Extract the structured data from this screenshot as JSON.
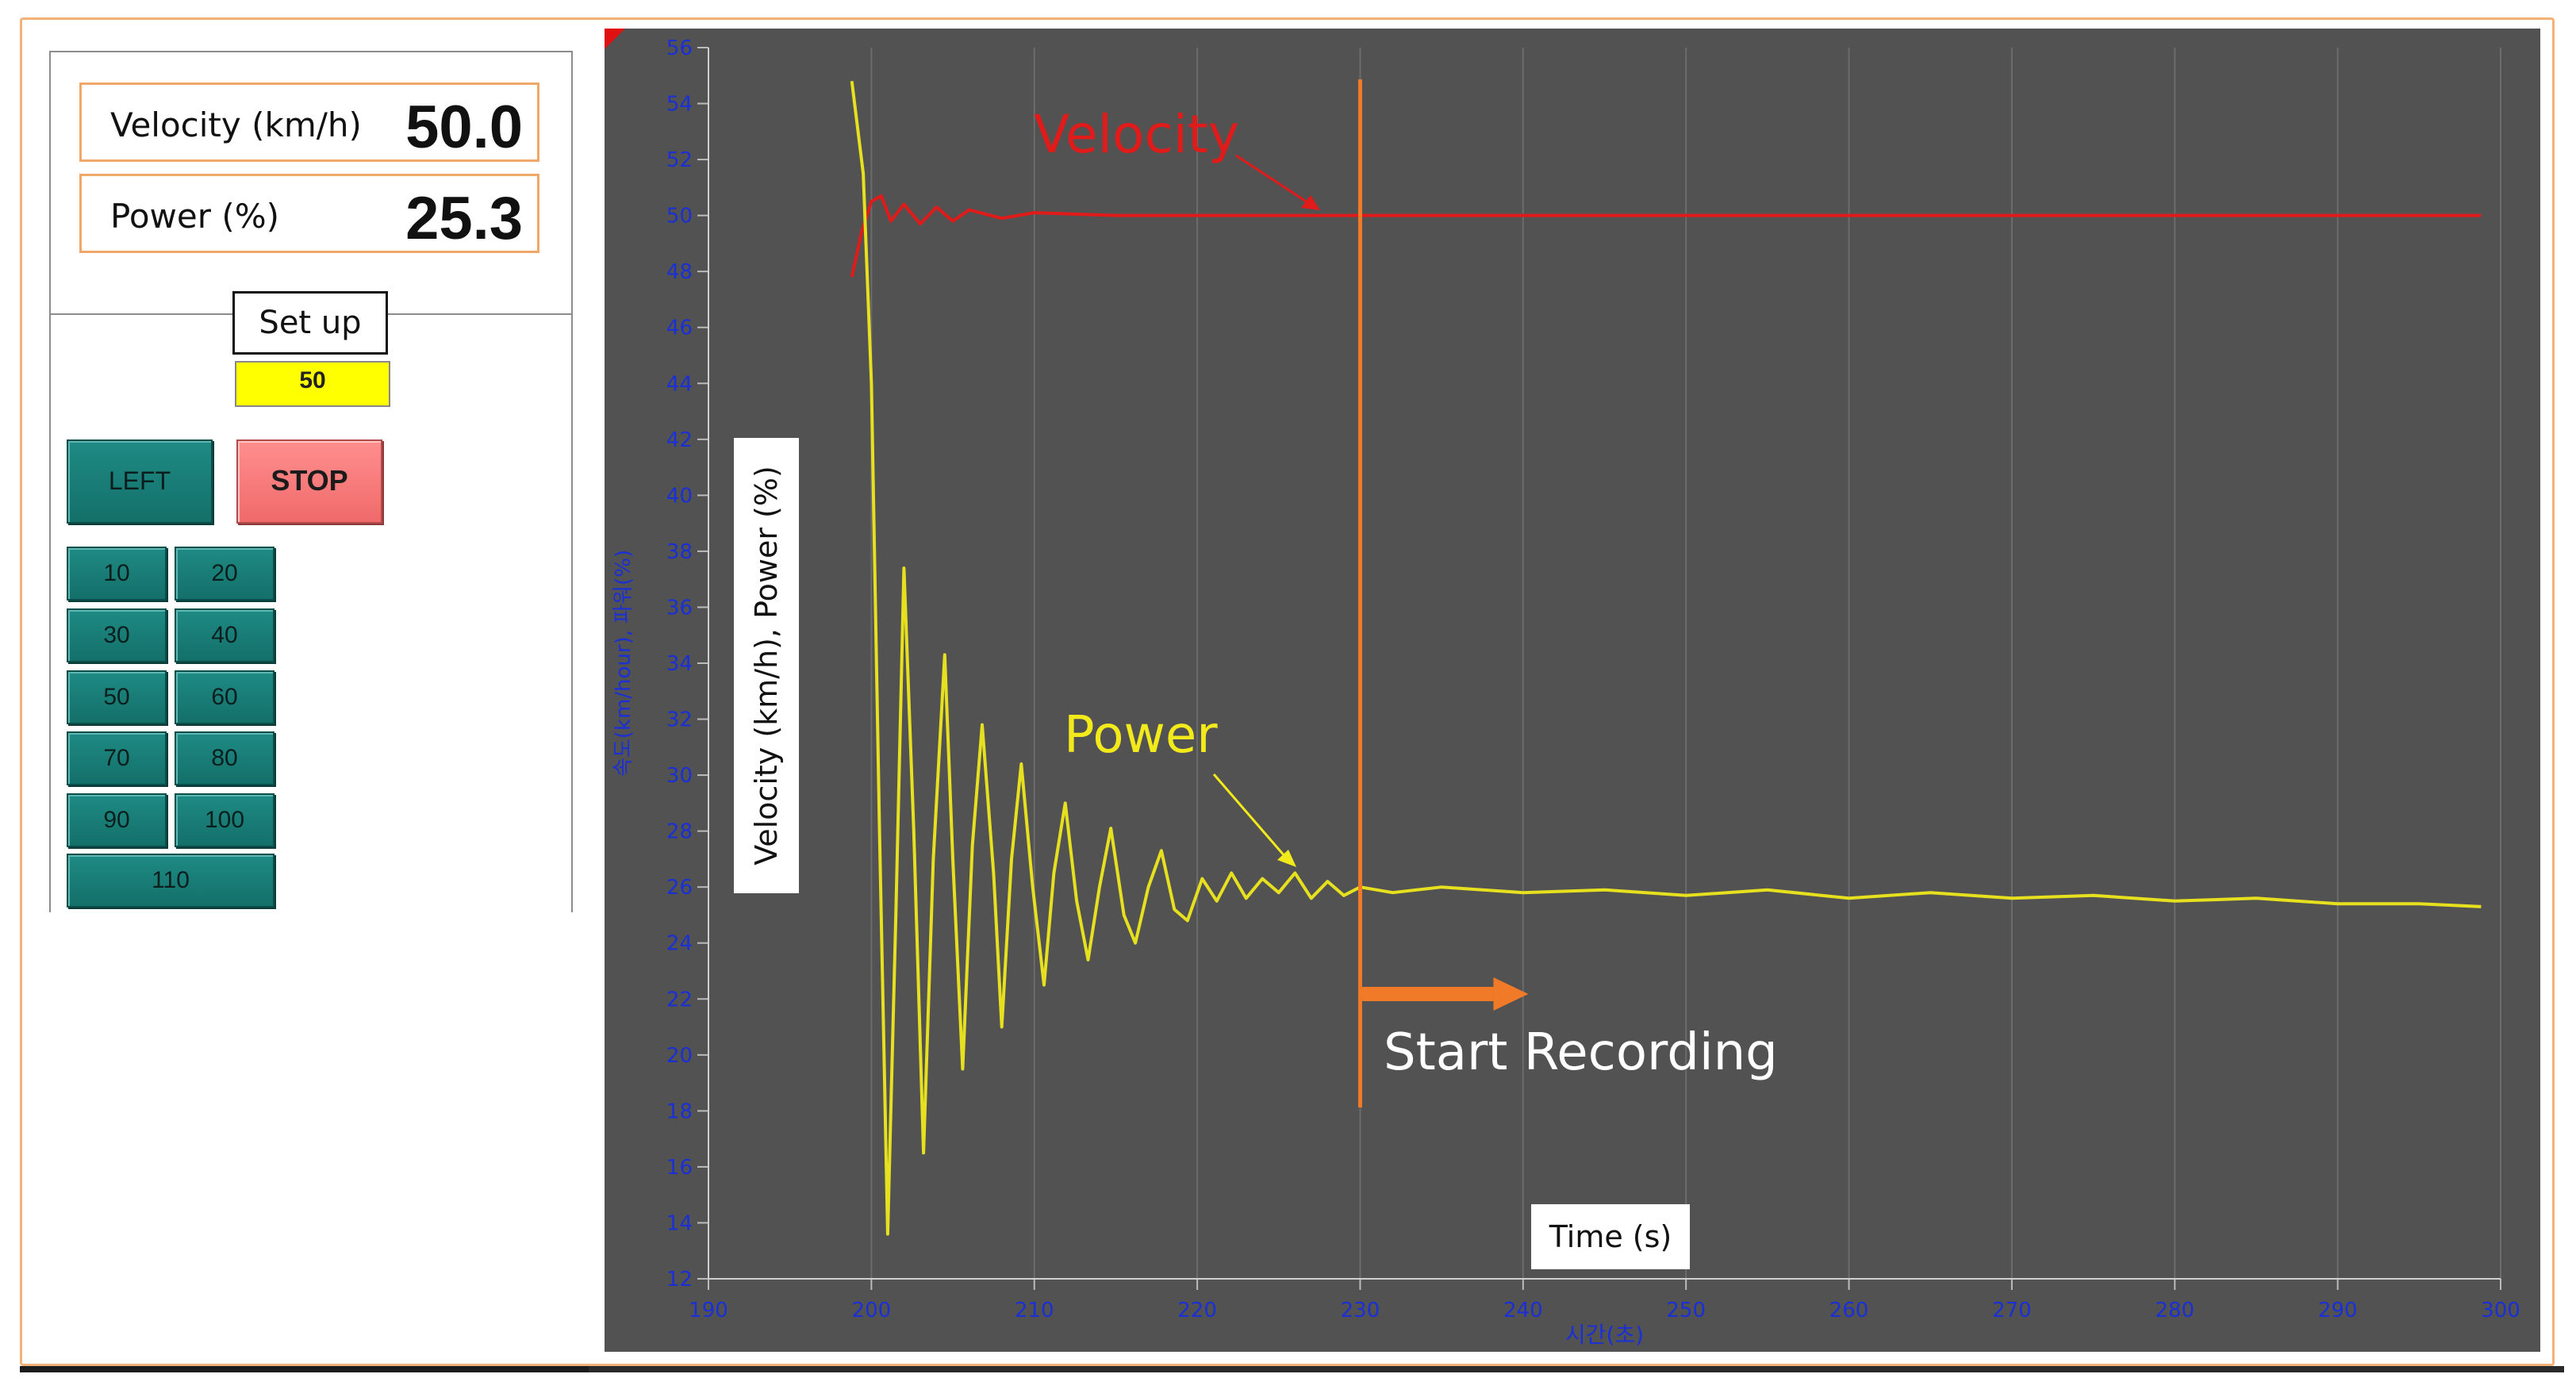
{
  "readouts": {
    "velocity": {
      "label": "Velocity (km/h)",
      "value": "50.0"
    },
    "power": {
      "label": "Power (%)",
      "value": "25.3"
    }
  },
  "setup": {
    "label": "Set up",
    "value": "50"
  },
  "buttons": {
    "left": "LEFT",
    "stop": "STOP",
    "presets": [
      "10",
      "20",
      "30",
      "40",
      "50",
      "60",
      "70",
      "80",
      "90",
      "100",
      "110"
    ]
  },
  "colors": {
    "chart_bg": "#525252",
    "velocity": "#e11a1a",
    "power": "#e6e01e",
    "axis_text": "#1a2fd6",
    "marker": "#f07a28",
    "stop": "#f06a6a",
    "preset": "#1b7f79",
    "setup_bg": "#ffff00"
  },
  "annotations": {
    "velocity_label": "Velocity",
    "power_label": "Power",
    "start_recording": "Start Recording",
    "y_axis_overlay": "Velocity (km/h), Power (%)",
    "x_axis_overlay": "Time (s)"
  },
  "chart_data": {
    "type": "line",
    "xlabel": "시간(초)",
    "ylabel": "속도(km/hour), 파워(%)",
    "xlim": [
      190,
      300
    ],
    "ylim": [
      12,
      56
    ],
    "x_ticks": [
      "190",
      "200",
      "210",
      "220",
      "230",
      "240",
      "250",
      "260",
      "270",
      "280",
      "290",
      "300"
    ],
    "y_ticks": [
      "12",
      "14",
      "16",
      "18",
      "20",
      "22",
      "24",
      "26",
      "28",
      "30",
      "32",
      "34",
      "36",
      "38",
      "40",
      "42",
      "44",
      "46",
      "48",
      "50",
      "52",
      "54",
      "56"
    ],
    "grid": true,
    "recording_start_x": 230,
    "series": [
      {
        "name": "Velocity",
        "x": [
          198.8,
          199.4,
          200.0,
          200.6,
          201.2,
          202.0,
          203.0,
          204.0,
          205.0,
          206.0,
          208.0,
          210.0,
          215.0,
          220.0,
          230.0,
          240.0,
          260.0,
          280.0,
          298.8
        ],
        "y": [
          47.8,
          49.4,
          50.5,
          50.7,
          49.8,
          50.4,
          49.7,
          50.3,
          49.8,
          50.2,
          49.9,
          50.1,
          50.0,
          50.0,
          50.0,
          50.0,
          50.0,
          50.0,
          50.0
        ]
      },
      {
        "name": "Power",
        "x_start": 198.8,
        "x_end": 298.8,
        "x": [
          198.8,
          199.5,
          200.0,
          200.5,
          201.0,
          201.5,
          202.0,
          202.6,
          203.2,
          203.8,
          204.5,
          205.0,
          205.6,
          206.2,
          206.8,
          207.5,
          208.0,
          208.6,
          209.2,
          209.9,
          210.6,
          211.2,
          211.9,
          212.6,
          213.3,
          214.0,
          214.7,
          215.5,
          216.2,
          217.0,
          217.8,
          218.6,
          219.4,
          220.3,
          221.2,
          222.1,
          223.0,
          224.0,
          225.0,
          226.0,
          227.0,
          228.0,
          229.0,
          230.0,
          232.0,
          235.0,
          240.0,
          245.0,
          250.0,
          255.0,
          260.0,
          265.0,
          270.0,
          275.0,
          280.0,
          285.0,
          290.0,
          295.0,
          298.8
        ],
        "y": [
          54.8,
          51.5,
          44.0,
          28.0,
          13.6,
          25.0,
          37.4,
          28.0,
          16.5,
          27.0,
          34.3,
          27.0,
          19.5,
          27.5,
          31.8,
          26.5,
          21.0,
          27.0,
          30.4,
          26.0,
          22.5,
          26.5,
          29.0,
          25.5,
          23.4,
          26.0,
          28.1,
          25.0,
          24.0,
          26.0,
          27.3,
          25.2,
          24.8,
          26.3,
          25.5,
          26.5,
          25.6,
          26.3,
          25.8,
          26.5,
          25.6,
          26.2,
          25.7,
          26.0,
          25.8,
          26.0,
          25.8,
          25.9,
          25.7,
          25.9,
          25.6,
          25.8,
          25.6,
          25.7,
          25.5,
          25.6,
          25.4,
          25.4,
          25.3
        ]
      }
    ]
  }
}
